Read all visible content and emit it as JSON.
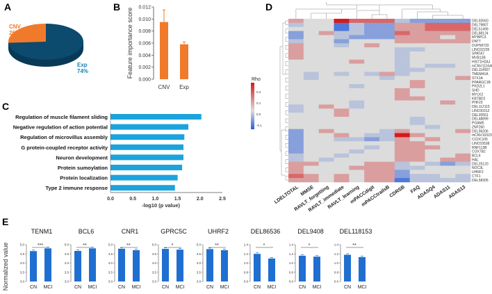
{
  "chart_data": [
    {
      "panel": "A",
      "type": "pie",
      "slices": [
        {
          "label": "CNV",
          "percent_label": "26%",
          "value": 26,
          "color": "#f07a2c"
        },
        {
          "label": "Exp",
          "percent_label": "74%",
          "value": 74,
          "color": "#0c4a6e"
        }
      ]
    },
    {
      "panel": "B",
      "type": "bar",
      "categories": [
        "CNV",
        "Exp"
      ],
      "values": [
        0.0095,
        0.0058
      ],
      "errors": [
        0.002,
        0.0004
      ],
      "ylabel": "Feature importance score",
      "ylim": [
        0,
        0.012
      ],
      "yticks": [
        "0.000",
        "0.002",
        "0.004",
        "0.006",
        "0.008",
        "0.010",
        "0.012"
      ],
      "color": "#f07a2c"
    },
    {
      "panel": "C",
      "type": "bar",
      "orientation": "horizontal",
      "categories": [
        "Regulation of muscle filament sliding",
        "Negative regulation of action potential",
        "Regulation of microvillus assembly",
        "G protein-coupled receptor activity",
        "Neuron development",
        "Protein sumoylation",
        "Protein localization",
        "Type 2 immune response"
      ],
      "values": [
        2.03,
        1.74,
        1.65,
        1.63,
        1.63,
        1.6,
        1.5,
        1.44
      ],
      "xlabel": "-log10 (p value)",
      "xlim": [
        0,
        2.5
      ],
      "xticks": [
        "0.0",
        "0.5",
        "1.0",
        "1.5",
        "2.0",
        "2.5"
      ],
      "color": "#1ba3dd"
    },
    {
      "panel": "D",
      "type": "heatmap",
      "legend_title": "Rho",
      "legend_ticks": [
        "0.2",
        "0.1",
        "0.0",
        "-0.1"
      ],
      "colors": {
        "high": "#d7191c",
        "mid": "#dcdcdc",
        "low": "#2b5fd9"
      },
      "columns": [
        "LDELTOTAL",
        "MMSE",
        "RAVLT_forgetting",
        "RAVLT_immediate",
        "RAVLT_learning",
        "mPACCdigit",
        "mPACCtrailsB",
        "CDRSB",
        "FAQ",
        "ADASQ4",
        "ADAS11",
        "ADAS13"
      ],
      "rows": [
        "DEL92650",
        "DEL79807",
        "DEL51499",
        "DEL88124",
        "MYBPC3",
        "DNTT",
        "DUP58733",
        "LINC02235",
        "SPATA7",
        "MVB12B",
        "HIST1H2AJ",
        "mCNV111646",
        "DEL114507",
        "TMEM41A",
        "STX1A",
        "PPARGC1B",
        "PKD2L1",
        "SHD",
        "MYLK2",
        "KBTBD2",
        "PHF23",
        "DEL112115",
        "LINC00312",
        "DEL20561",
        "DEL48899",
        "PGAM5",
        "ZNF260",
        "DEL96206",
        "mCNV103234",
        "CCDC105",
        "LINC03538",
        "RNF113B",
        "COX7B2",
        "BCL6",
        "HAL",
        "DEL25120",
        "NOC3L",
        "UHRF2",
        "CTF1",
        "DEL58305"
      ],
      "values": [
        [
          0.08,
          0,
          0,
          0.25,
          0.15,
          0.15,
          0.15,
          -0.05,
          -0.12,
          -0.12,
          -0.12,
          -0.12
        ],
        [
          -0.05,
          0,
          0,
          -0.2,
          -0.05,
          -0.12,
          -0.12,
          0.08,
          0.08,
          0.15,
          0.15,
          0.15
        ],
        [
          0,
          0,
          0,
          -0.2,
          -0.05,
          -0.12,
          -0.12,
          0.08,
          0.08,
          0.15,
          0.15,
          0.15
        ],
        [
          -0.12,
          0,
          0.08,
          -0.05,
          -0.05,
          -0.12,
          -0.12,
          0.15,
          0.08,
          0.08,
          0.08,
          0.08
        ],
        [
          -0.12,
          0,
          0,
          -0.05,
          -0.12,
          -0.12,
          -0.12,
          0.08,
          0.08,
          0.08,
          0,
          0.08
        ],
        [
          -0.05,
          0,
          0,
          -0.12,
          0,
          0,
          0,
          0.08,
          0.08,
          0.08,
          0.08,
          0.08
        ],
        [
          0.08,
          0,
          0,
          -0.05,
          0,
          0.08,
          0,
          0,
          0,
          0,
          0,
          0
        ],
        [
          0.08,
          0,
          0,
          0,
          0,
          0,
          0,
          -0.05,
          -0.05,
          0,
          0,
          0
        ],
        [
          0.08,
          0,
          0,
          0,
          0,
          0,
          0,
          -0.05,
          0,
          0,
          0,
          0
        ],
        [
          0.08,
          0,
          0,
          0,
          0,
          0,
          0,
          -0.05,
          0,
          0,
          0,
          0
        ],
        [
          0,
          0,
          0,
          0,
          0.08,
          0,
          0,
          -0.05,
          0,
          0,
          0,
          0
        ],
        [
          0,
          0,
          0,
          0,
          0,
          0,
          0,
          -0.05,
          0,
          -0.05,
          -0.05,
          0
        ],
        [
          0,
          0,
          0,
          0,
          0,
          0,
          0,
          -0.05,
          -0.05,
          0,
          0,
          0
        ],
        [
          0,
          -0.05,
          0,
          -0.05,
          0,
          -0.05,
          0.08,
          -0.05,
          0,
          0,
          0,
          0
        ],
        [
          0,
          -0.05,
          0,
          0,
          0,
          0,
          -0.05,
          0,
          0,
          0,
          0,
          0.08
        ],
        [
          0,
          0,
          0,
          0,
          0,
          0,
          0,
          0,
          0.08,
          0,
          0,
          0
        ],
        [
          0,
          0,
          0,
          0,
          -0.05,
          0,
          0,
          0,
          0.08,
          0,
          0,
          0
        ],
        [
          0,
          0,
          0,
          0,
          0,
          0,
          0,
          0.08,
          0,
          0,
          0,
          0
        ],
        [
          0,
          0,
          0,
          0,
          0,
          0,
          0,
          0.08,
          0,
          0,
          0,
          0
        ],
        [
          0,
          0,
          0,
          0,
          0,
          0,
          0,
          0.08,
          0.08,
          0,
          0,
          0
        ],
        [
          0,
          0,
          0,
          0,
          -0.05,
          0,
          0,
          0,
          0,
          0,
          0.08,
          0
        ],
        [
          -0.05,
          0,
          0.08,
          0,
          -0.05,
          0,
          0,
          0,
          0,
          0,
          0,
          0
        ],
        [
          -0.05,
          0,
          0,
          0.08,
          0,
          0,
          0,
          0,
          0,
          0,
          0,
          0
        ],
        [
          0,
          0,
          0,
          0.08,
          0,
          0,
          0,
          0,
          0,
          0,
          0,
          0
        ],
        [
          0,
          0,
          0,
          0,
          0,
          0,
          0,
          0,
          -0.05,
          0,
          0,
          0
        ],
        [
          0,
          0,
          0,
          0,
          0,
          0,
          0,
          0,
          -0.05,
          0,
          0,
          0
        ],
        [
          0,
          0,
          0,
          0,
          0,
          0,
          0,
          0,
          0,
          -0.05,
          0,
          0
        ],
        [
          -0.12,
          0,
          0.08,
          0,
          0,
          0,
          -0.05,
          0.08,
          0,
          0,
          0,
          0.08
        ],
        [
          -0.12,
          0,
          0,
          0.08,
          0,
          -0.05,
          -0.05,
          0.25,
          0.08,
          0,
          0,
          0
        ],
        [
          -0.12,
          0,
          0,
          -0.05,
          -0.05,
          -0.12,
          -0.05,
          0.08,
          0,
          0.08,
          0,
          0
        ],
        [
          -0.12,
          0,
          0,
          0,
          0,
          0,
          0,
          0.08,
          0.08,
          0,
          0,
          0
        ],
        [
          -0.12,
          0,
          0,
          0,
          0,
          -0.05,
          0,
          0.08,
          0.08,
          0.08,
          0,
          0
        ],
        [
          -0.12,
          0,
          0,
          0,
          -0.05,
          0,
          0,
          0.08,
          0.08,
          0,
          0,
          0
        ],
        [
          -0.05,
          0,
          0,
          -0.05,
          0,
          0,
          0,
          0.08,
          0.08,
          0,
          0,
          0.08
        ],
        [
          -0.05,
          0,
          -0.05,
          0,
          0,
          0,
          0,
          0.08,
          0.08,
          0,
          0.08,
          0.08
        ],
        [
          0.08,
          0.08,
          0,
          0,
          0,
          0.08,
          0.08,
          -0.05,
          0,
          -0.05,
          -0.12,
          -0.05
        ],
        [
          0.08,
          0,
          0,
          0,
          0.08,
          0.08,
          0.08,
          -0.05,
          -0.05,
          0,
          0,
          0
        ],
        [
          0.08,
          0,
          0,
          0,
          0,
          0.08,
          0.08,
          -0.12,
          0,
          0,
          0,
          0
        ],
        [
          0.15,
          0.08,
          0,
          0.08,
          0,
          0.08,
          0.08,
          -0.12,
          -0.05,
          -0.05,
          0,
          -0.05
        ],
        [
          0.08,
          0.08,
          0,
          0.08,
          0,
          0.08,
          0.08,
          -0.2,
          -0.05,
          -0.05,
          -0.05,
          -0.05
        ]
      ]
    },
    {
      "panel": "E",
      "type": "bar",
      "ylabel": "Normalized value",
      "categories": [
        "CN",
        "MCI"
      ],
      "color": "#1f6fd1",
      "subplots": [
        {
          "title": "TENM1",
          "values": [
            4.65,
            4.8
          ],
          "sig": "***",
          "ylim": [
            3.0,
            5.0
          ],
          "yticks": [
            "3.0",
            "3.5",
            "4.0",
            "4.5",
            "5.0"
          ]
        },
        {
          "title": "BCL6",
          "values": [
            4.66,
            4.8
          ],
          "sig": "**",
          "ylim": [
            3.0,
            5.0
          ],
          "yticks": [
            "3.0",
            "3.5",
            "4.0",
            "4.5",
            "5.0"
          ]
        },
        {
          "title": "CNR1",
          "values": [
            4.78,
            4.7
          ],
          "sig": "**",
          "ylim": [
            3.0,
            5.0
          ],
          "yticks": [
            "3.0",
            "3.5",
            "4.0",
            "4.5",
            "5.0"
          ]
        },
        {
          "title": "GPRC5C",
          "values": [
            4.77,
            4.73
          ],
          "sig": "*",
          "ylim": [
            3.0,
            5.0
          ],
          "yticks": [
            "3.0",
            "3.5",
            "4.0",
            "4.5",
            "5.0"
          ]
        },
        {
          "title": "UHRF2",
          "values": [
            4.76,
            4.7
          ],
          "sig": "**",
          "ylim": [
            3.0,
            5.0
          ],
          "yticks": [
            "3.0",
            "3.5",
            "4.0",
            "4.5",
            "5.0"
          ]
        },
        {
          "title": "DEL86536",
          "values": [
            1.2,
            1.1
          ],
          "sig": "*",
          "ylim": [
            0.6,
            1.4
          ],
          "yticks": [
            "0.6",
            "0.8",
            "1.0",
            "1.2",
            "1.4"
          ]
        },
        {
          "title": "DEL9408",
          "values": [
            1.16,
            1.14
          ],
          "sig": "*",
          "ylim": [
            0.6,
            1.4
          ],
          "yticks": [
            "0.6",
            "0.8",
            "1.0",
            "1.2",
            "1.4"
          ]
        },
        {
          "title": "DEL118153",
          "values": [
            1.18,
            1.13
          ],
          "sig": "**",
          "ylim": [
            0.6,
            1.4
          ],
          "yticks": [
            "0.6",
            "0.8",
            "1.0",
            "1.2",
            "1.4"
          ]
        }
      ]
    }
  ],
  "panels": [
    "A",
    "B",
    "C",
    "D",
    "E"
  ]
}
